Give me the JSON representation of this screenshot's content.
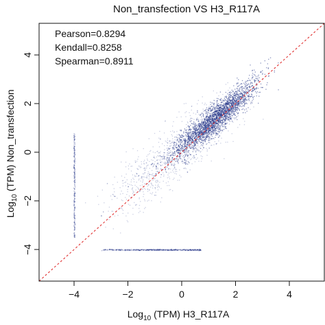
{
  "chart_data": {
    "type": "scatter",
    "title": "Non_transfection VS H3_R117A",
    "xlabel": {
      "prefix": "Log",
      "sub": "10",
      "suffix": " (TPM) H3_R117A"
    },
    "ylabel": {
      "prefix": "Log",
      "sub": "10",
      "suffix": " (TPM) Non_transfection"
    },
    "xlim": [
      -5.3,
      5.3
    ],
    "ylim": [
      -5.3,
      5.3
    ],
    "xticks": [
      -4,
      -2,
      0,
      2,
      4
    ],
    "yticks": [
      -4,
      -2,
      0,
      2,
      4
    ],
    "xtick_labels": [
      "−4",
      "−2",
      "0",
      "2",
      "4"
    ],
    "ytick_labels": [
      "−4",
      "−2",
      "0",
      "2",
      "4"
    ],
    "statistics": [
      {
        "name": "Pearson",
        "text": "Pearson=0.8294"
      },
      {
        "name": "Kendall",
        "text": "Kendall=0.8258"
      },
      {
        "name": "Spearman",
        "text": "Spearman=0.8911"
      }
    ],
    "reference_line": {
      "slope": 1,
      "intercept": 0,
      "color": "#e03030",
      "style": "dashed"
    },
    "point_color": "#2c3c8c",
    "grid": false,
    "series": [
      {
        "points_summary": "Dense cloud along y = x, centered near (1.3, 1.5), spanning about -1.5 to 2.5 on both axes; sparser scatter extending to the lower left",
        "x": [
          -1.2,
          -0.8,
          -0.5,
          -0.2,
          0.0,
          0.3,
          0.5,
          0.7,
          0.9,
          1.0,
          1.1,
          1.2,
          1.3,
          1.4,
          1.5,
          1.6,
          1.7,
          1.8,
          1.9,
          2.0,
          2.1,
          2.2,
          2.4,
          -3.0,
          -2.5,
          -2.0,
          -1.5,
          0.2,
          0.8,
          1.5
        ],
        "y": [
          -0.9,
          -0.4,
          -0.3,
          0.1,
          0.3,
          0.5,
          0.8,
          1.0,
          1.2,
          1.1,
          1.3,
          1.5,
          1.4,
          1.6,
          1.7,
          1.6,
          1.8,
          1.9,
          2.0,
          2.1,
          2.2,
          2.3,
          2.5,
          -2.6,
          -1.8,
          -1.4,
          -1.0,
          -0.8,
          0.2,
          0.9
        ]
      },
      {
        "points_summary": "Vertical strip at x = -4 (zero in H3_R117A)",
        "x_const": -4,
        "y_range": [
          -3.5,
          0.8
        ]
      },
      {
        "points_summary": "Horizontal strip at y = -4 (zero in Non_transfection)",
        "y_const": -4,
        "x_range": [
          -3.0,
          0.7
        ]
      }
    ]
  }
}
